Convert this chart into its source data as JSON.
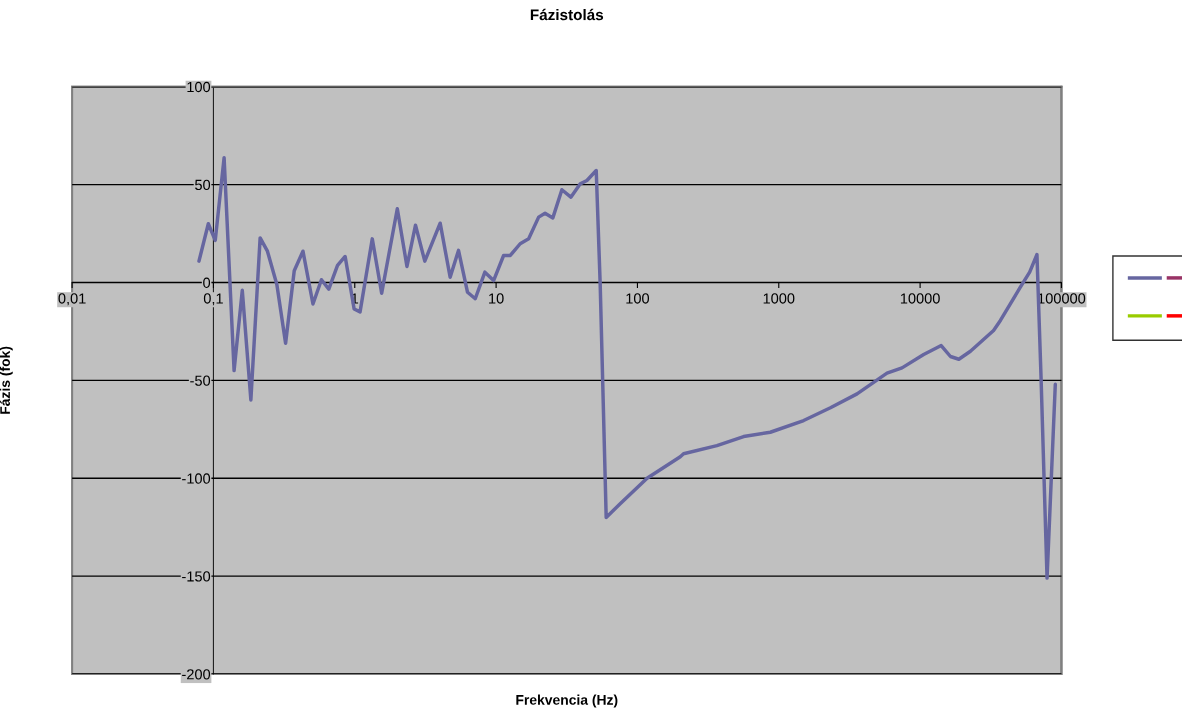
{
  "chart_data": {
    "type": "line",
    "title": "Fázistolás",
    "xlabel": "Frekvencia (Hz)",
    "ylabel": "Fázis (fok)",
    "log": "x",
    "xlim": [
      0.01,
      100000
    ],
    "ylim": [
      -200,
      100
    ],
    "xticks": [
      {
        "value": 0.01,
        "label": "0,01"
      },
      {
        "value": 0.1,
        "label": "0,1"
      },
      1,
      10,
      100,
      1000,
      10000,
      100000
    ],
    "yticks": [
      -200,
      -150,
      -100,
      -50,
      0,
      50,
      100
    ],
    "grid": "y",
    "marker": "none",
    "line_style": "solid",
    "x": [
      0.079,
      0.092,
      0.103,
      0.119,
      0.14,
      0.16,
      0.184,
      0.214,
      0.241,
      0.281,
      0.324,
      0.373,
      0.43,
      0.506,
      0.581,
      0.655,
      0.755,
      0.855,
      0.99,
      1.09,
      1.33,
      1.55,
      2.0,
      2.34,
      2.69,
      3.13,
      4.02,
      4.73,
      5.42,
      6.28,
      7.12,
      8.33,
      9.6,
      11.3,
      12.6,
      14.8,
      17,
      20,
      22.2,
      25.2,
      29.2,
      33.8,
      39.4,
      43.9,
      51.1,
      54.5,
      60.1,
      75.5,
      117,
      201,
      212,
      365,
      564,
      871,
      1500,
      2320,
      3580,
      5830,
      7450,
      10600,
      14100,
      16400,
      18800,
      22700,
      33100,
      37000,
      51200,
      59600,
      67100,
      71700,
      79100,
      90500
    ],
    "series": [
      {
        "color": "#6666a0",
        "values": [
          10.9,
          30,
          21.5,
          63.7,
          -45,
          -4,
          -60,
          22.8,
          16,
          -1,
          -31,
          6,
          16,
          -11,
          1.4,
          -3.4,
          8.7,
          13.3,
          -13.5,
          -15,
          22.3,
          -5.5,
          37.7,
          8.2,
          29.3,
          10.9,
          30.3,
          2.7,
          16.4,
          -5,
          -8.3,
          5.3,
          1,
          13.8,
          13.8,
          19.8,
          22.3,
          33.4,
          35.4,
          33,
          47.4,
          43.6,
          50.4,
          52.1,
          57.2,
          -0.7,
          -120,
          -113,
          -100,
          -89,
          -87.5,
          -83.3,
          -78.7,
          -76.5,
          -70.5,
          -64,
          -56.9,
          -46.3,
          -43.6,
          -36.8,
          -32.2,
          -37.8,
          -39.2,
          -35.1,
          -24.5,
          -19.4,
          -2.4,
          5.3,
          14.3,
          -48,
          -151,
          -52
        ]
      },
      {
        "color": "#993366",
        "values": [
          null,
          null,
          null,
          null,
          null,
          null,
          null,
          null,
          null,
          null,
          null,
          null,
          null,
          null,
          null,
          null,
          null,
          null,
          null,
          null,
          null,
          null,
          null,
          null,
          null,
          null,
          null,
          null,
          null,
          null,
          null,
          null,
          null,
          null,
          null,
          null,
          null,
          null,
          null,
          null,
          null,
          null,
          null,
          null,
          null,
          null,
          null,
          null,
          null,
          null,
          null,
          null,
          null,
          null,
          null,
          null,
          null,
          null,
          null,
          null,
          null,
          null,
          null,
          null,
          null,
          null,
          null,
          null,
          null,
          null,
          null,
          null
        ]
      },
      {
        "color": "#99cc00",
        "values": [
          null,
          null,
          null,
          null,
          null,
          null,
          null,
          null,
          null,
          null,
          null,
          null,
          null,
          null,
          null,
          null,
          null,
          null,
          null,
          null,
          null,
          null,
          null,
          null,
          null,
          null,
          null,
          null,
          null,
          null,
          null,
          null,
          null,
          null,
          null,
          null,
          null,
          null,
          null,
          null,
          null,
          null,
          null,
          null,
          null,
          null,
          null,
          null,
          null,
          null,
          null,
          null,
          null,
          null,
          null,
          null,
          null,
          null,
          null,
          null,
          null,
          null,
          null,
          null,
          null,
          null,
          null,
          null,
          null,
          null,
          null,
          null
        ]
      },
      {
        "color": "#ff0000",
        "values": [
          null,
          null,
          null,
          null,
          null,
          null,
          null,
          null,
          null,
          null,
          null,
          null,
          null,
          null,
          null,
          null,
          null,
          null,
          null,
          null,
          null,
          null,
          null,
          null,
          null,
          null,
          null,
          null,
          null,
          null,
          null,
          null,
          null,
          null,
          null,
          null,
          null,
          null,
          null,
          null,
          null,
          null,
          null,
          null,
          null,
          null,
          null,
          null,
          null,
          null,
          null,
          null,
          null,
          null,
          null,
          null,
          null,
          null,
          null,
          null,
          null,
          null,
          null,
          null,
          null,
          null,
          null,
          null,
          null,
          null,
          null,
          null
        ]
      }
    ]
  }
}
